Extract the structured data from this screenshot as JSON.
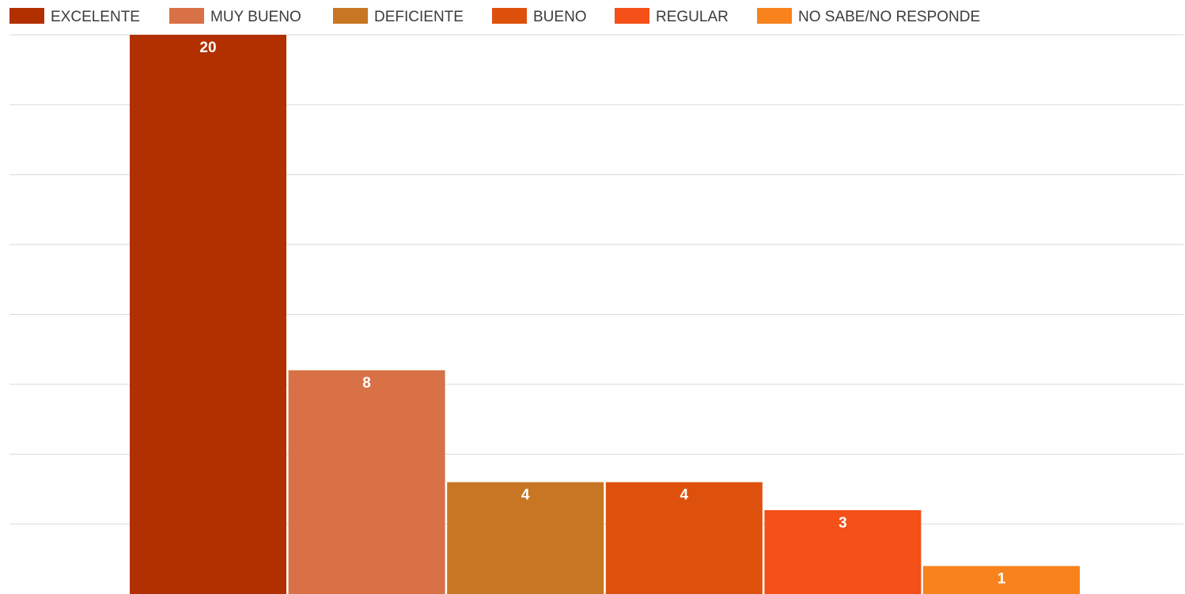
{
  "chart_data": {
    "type": "bar",
    "title": "",
    "xlabel": "",
    "ylabel": "",
    "ylim": [
      0,
      20
    ],
    "grid": true,
    "legend": "top-left",
    "show_value_labels": true,
    "series": [
      {
        "name": "EXCELENTE",
        "value": 20,
        "color": "#b22f00"
      },
      {
        "name": "MUY BUENO",
        "value": 8,
        "color": "#d87146"
      },
      {
        "name": "DEFICIENTE",
        "value": 4,
        "color": "#c87624"
      },
      {
        "name": "BUENO",
        "value": 4,
        "color": "#de510d"
      },
      {
        "name": "REGULAR",
        "value": 3,
        "color": "#f45018"
      },
      {
        "name": "NO SABE/NO RESPONDE",
        "value": 1,
        "color": "#f8821b"
      }
    ]
  }
}
